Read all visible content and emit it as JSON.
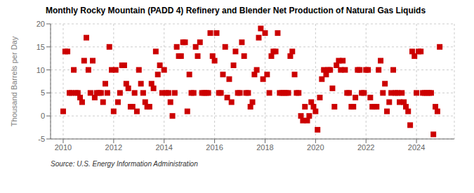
{
  "chart_data": {
    "type": "scatter",
    "title": "Monthly Rocky Mountain (PADD 4) Refinery and Blender Net Production of Natural Gas Liquids",
    "ylabel": "Thousand Barrels per Day",
    "source": "Source: U.S. Energy Information Administration",
    "color": "#cc0000",
    "marker": "square",
    "grid": true,
    "xlim": [
      2009.5,
      2025.5
    ],
    "xticks": [
      2010,
      2012,
      2014,
      2016,
      2018,
      2020,
      2022,
      2024
    ],
    "ylim": [
      -5,
      20
    ],
    "yticks": [
      -5,
      0,
      5,
      10,
      15,
      20
    ],
    "x": [
      2010.0,
      2010.08,
      2010.17,
      2010.25,
      2010.33,
      2010.42,
      2010.5,
      2010.58,
      2010.67,
      2010.75,
      2010.83,
      2010.92,
      2011.0,
      2011.08,
      2011.17,
      2011.25,
      2011.33,
      2011.42,
      2011.5,
      2011.58,
      2011.67,
      2011.75,
      2011.83,
      2011.92,
      2012.0,
      2012.08,
      2012.17,
      2012.25,
      2012.33,
      2012.42,
      2012.5,
      2012.58,
      2012.67,
      2012.75,
      2012.83,
      2012.92,
      2013.0,
      2013.08,
      2013.17,
      2013.25,
      2013.33,
      2013.42,
      2013.5,
      2013.58,
      2013.67,
      2013.75,
      2013.83,
      2013.92,
      2014.0,
      2014.08,
      2014.17,
      2014.25,
      2014.33,
      2014.42,
      2014.5,
      2014.58,
      2014.67,
      2014.75,
      2014.83,
      2014.92,
      2015.0,
      2015.08,
      2015.17,
      2015.25,
      2015.33,
      2015.42,
      2015.5,
      2015.58,
      2015.67,
      2015.75,
      2015.83,
      2015.92,
      2016.0,
      2016.08,
      2016.17,
      2016.25,
      2016.33,
      2016.42,
      2016.5,
      2016.58,
      2016.67,
      2016.75,
      2016.83,
      2016.92,
      2017.0,
      2017.08,
      2017.17,
      2017.25,
      2017.33,
      2017.42,
      2017.5,
      2017.58,
      2017.67,
      2017.75,
      2017.83,
      2017.92,
      2018.0,
      2018.08,
      2018.17,
      2018.25,
      2018.33,
      2018.42,
      2018.5,
      2018.58,
      2018.67,
      2018.75,
      2018.83,
      2018.92,
      2019.0,
      2019.08,
      2019.17,
      2019.25,
      2019.33,
      2019.42,
      2019.5,
      2019.58,
      2019.67,
      2019.75,
      2019.83,
      2019.92,
      2020.0,
      2020.08,
      2020.17,
      2020.25,
      2020.33,
      2020.42,
      2020.5,
      2020.58,
      2020.67,
      2020.75,
      2020.83,
      2020.92,
      2021.0,
      2021.08,
      2021.17,
      2021.25,
      2021.33,
      2021.42,
      2021.5,
      2021.58,
      2021.67,
      2021.75,
      2021.83,
      2021.92,
      2022.0,
      2022.08,
      2022.17,
      2022.25,
      2022.33,
      2022.42,
      2022.5,
      2022.58,
      2022.67,
      2022.75,
      2022.83,
      2022.92,
      2023.0,
      2023.08,
      2023.17,
      2023.25,
      2023.33,
      2023.42,
      2023.5,
      2023.58,
      2023.67,
      2023.75,
      2023.83,
      2023.92,
      2024.0,
      2024.08,
      2024.17,
      2024.25,
      2024.33,
      2024.42,
      2024.5,
      2024.58,
      2024.67,
      2024.75,
      2024.83,
      2024.92
    ],
    "values": [
      1,
      14,
      14,
      5,
      5,
      10,
      5,
      5,
      4,
      3,
      12,
      17,
      10,
      5,
      12,
      4,
      5,
      5,
      5,
      3,
      7,
      5,
      15,
      10,
      1,
      10,
      3,
      5,
      11,
      11,
      7,
      6,
      2,
      2,
      5,
      1,
      10,
      7,
      5,
      3,
      2,
      2,
      7,
      6,
      14,
      9,
      11,
      5,
      10,
      5,
      5,
      3,
      0,
      5,
      15,
      13,
      13,
      16,
      16,
      1,
      9,
      5,
      5,
      15,
      13,
      16,
      5,
      5,
      5,
      5,
      18,
      13,
      12,
      18,
      5,
      5,
      9,
      15,
      4,
      8,
      3,
      11,
      14,
      5,
      5,
      16,
      13,
      5,
      5,
      2,
      3,
      9,
      10,
      17,
      19,
      8,
      18,
      9,
      5,
      13,
      14,
      14,
      18,
      5,
      5,
      5,
      5,
      5,
      13,
      14,
      9,
      5,
      5,
      0,
      -1,
      2,
      -1,
      0,
      3,
      2,
      1,
      -3,
      4,
      8,
      10,
      9,
      10,
      10,
      6,
      2,
      11,
      12,
      10,
      12,
      10,
      5,
      5,
      2,
      2,
      4,
      10,
      10,
      5,
      5,
      10,
      10,
      4,
      2,
      2,
      2,
      10,
      12,
      5,
      7,
      1,
      3,
      5,
      10,
      5,
      5,
      3,
      5,
      3,
      2,
      1,
      -2,
      14,
      13,
      5,
      14,
      14,
      5,
      5,
      5,
      5,
      5,
      -4,
      2,
      1,
      15
    ]
  }
}
